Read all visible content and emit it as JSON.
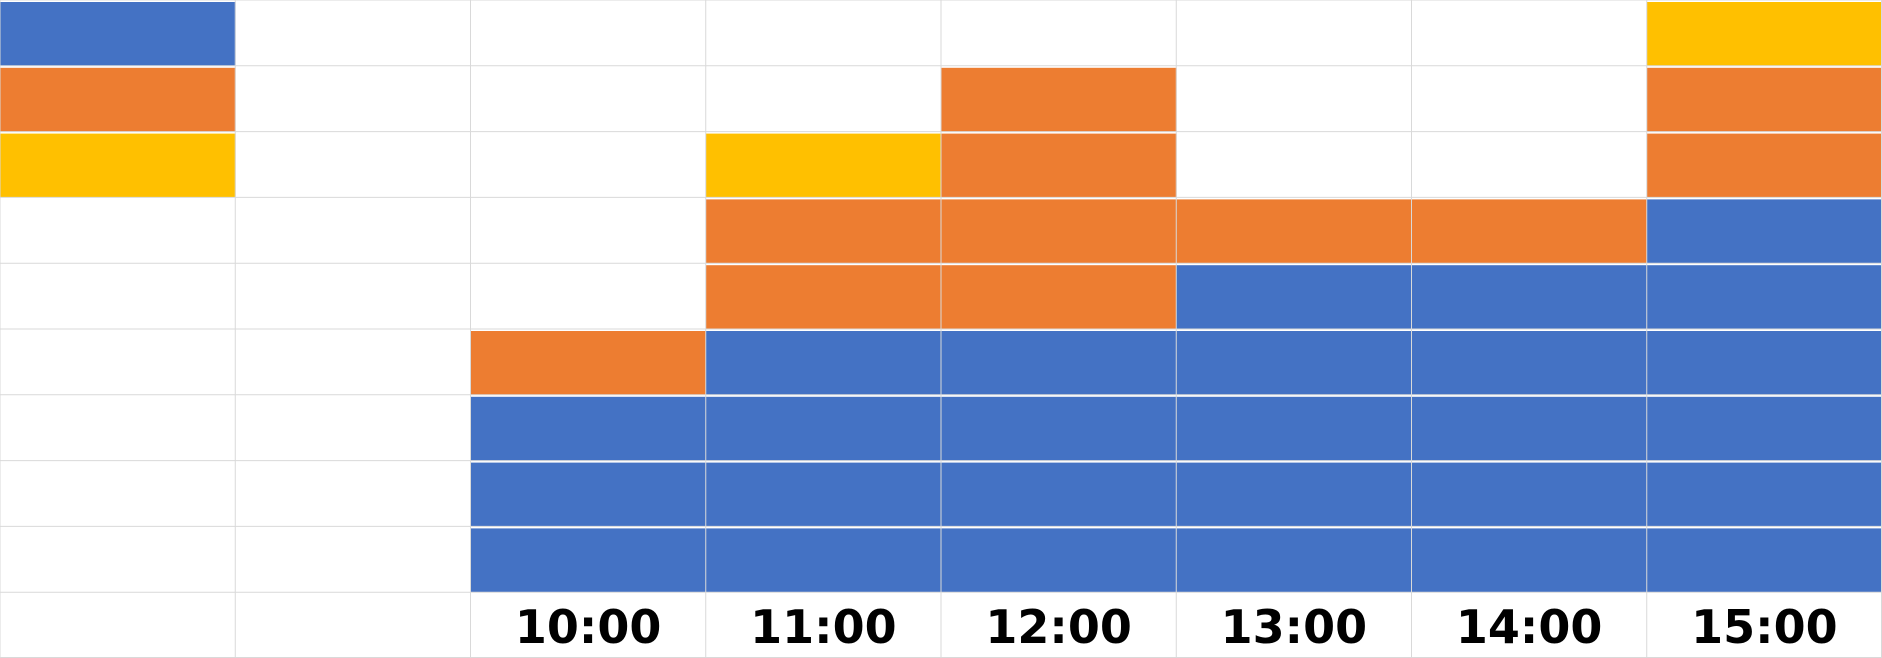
{
  "chart_data": {
    "type": "table",
    "grid": true,
    "columns": 8,
    "rows": 10,
    "colors": {
      "blue": "#4472C4",
      "orange": "#ED7D31",
      "yellow": "#FFC000",
      "gridline": "#D9D9D9",
      "background": "#FFFFFF"
    },
    "x_ticks": [
      "",
      "",
      "10:00",
      "11:00",
      "12:00",
      "13:00",
      "14:00",
      "15:00"
    ],
    "legend_swatches": [
      "blue",
      "orange",
      "yellow"
    ],
    "cells": [
      [
        "blue",
        "",
        "",
        "",
        "",
        "",
        "",
        "yellow"
      ],
      [
        "orange",
        "",
        "",
        "",
        "orange",
        "",
        "",
        "orange"
      ],
      [
        "yellow",
        "",
        "",
        "yellow",
        "orange",
        "",
        "",
        "orange"
      ],
      [
        "",
        "",
        "",
        "orange",
        "orange",
        "orange",
        "orange",
        "blue"
      ],
      [
        "",
        "",
        "",
        "orange",
        "orange",
        "blue",
        "blue",
        "blue"
      ],
      [
        "",
        "",
        "orange",
        "blue",
        "blue",
        "blue",
        "blue",
        "blue"
      ],
      [
        "",
        "",
        "blue",
        "blue",
        "blue",
        "blue",
        "blue",
        "blue"
      ],
      [
        "",
        "",
        "blue",
        "blue",
        "blue",
        "blue",
        "blue",
        "blue"
      ],
      [
        "",
        "",
        "blue",
        "blue",
        "blue",
        "blue",
        "blue",
        "blue"
      ],
      [
        "",
        "",
        "",
        "",
        "",
        "",
        "",
        ""
      ]
    ]
  }
}
